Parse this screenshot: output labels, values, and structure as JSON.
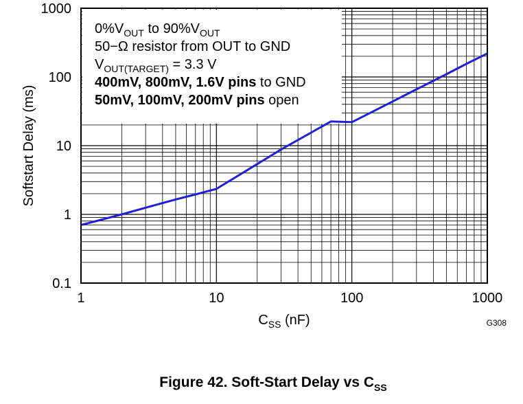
{
  "chart_data": {
    "type": "line",
    "x_scale": "log",
    "y_scale": "log",
    "xlim": [
      1,
      1000
    ],
    "ylim": [
      0.1,
      1000
    ],
    "x_ticks": [
      "1",
      "10",
      "100",
      "1000"
    ],
    "y_ticks": [
      "0.1",
      "1",
      "10",
      "100",
      "1000"
    ],
    "xlabel": {
      "main": "C",
      "sub": "SS",
      "rest": " (nF)"
    },
    "ylabel": "Softstart Delay (ms)",
    "grid": true,
    "line_color": "#1f1fd6",
    "series": [
      {
        "x": [
          1,
          2,
          3,
          5,
          7,
          10,
          20,
          30,
          50,
          70,
          100,
          200,
          300,
          500,
          700,
          1000
        ],
        "y": [
          0.7,
          1.0,
          1.25,
          1.65,
          1.95,
          2.35,
          5.4,
          8.8,
          15.5,
          22.5,
          22.0,
          44.0,
          66.0,
          110.0,
          155.0,
          220.0
        ]
      }
    ],
    "annotations": [
      {
        "id": "a1",
        "parts": [
          {
            "t": "0%V",
            "s": "normal"
          },
          {
            "t": "OUT",
            "s": "sub"
          },
          {
            "t": " to 90%V",
            "s": "normal"
          },
          {
            "t": "OUT",
            "s": "sub"
          }
        ]
      },
      {
        "id": "a2",
        "parts": [
          {
            "t": "50−Ω resistor from OUT to GND",
            "s": "normal"
          }
        ]
      },
      {
        "id": "a3",
        "parts": [
          {
            "t": "V",
            "s": "normal"
          },
          {
            "t": "OUT(TARGET)",
            "s": "sub"
          },
          {
            "t": " = 3.3 V",
            "s": "normal"
          }
        ]
      },
      {
        "id": "a4",
        "parts": [
          {
            "t": "400mV, 800mV, 1.6V pins",
            "s": "bold"
          },
          {
            "t": " to GND",
            "s": "normal"
          }
        ]
      },
      {
        "id": "a5",
        "parts": [
          {
            "t": "50mV, 100mV, 200mV pins",
            "s": "bold"
          },
          {
            "t": " open",
            "s": "normal"
          }
        ]
      }
    ],
    "graph_id": "G308",
    "caption": {
      "main": "Figure 42. Soft-Start Delay vs C",
      "sub": "SS"
    }
  }
}
